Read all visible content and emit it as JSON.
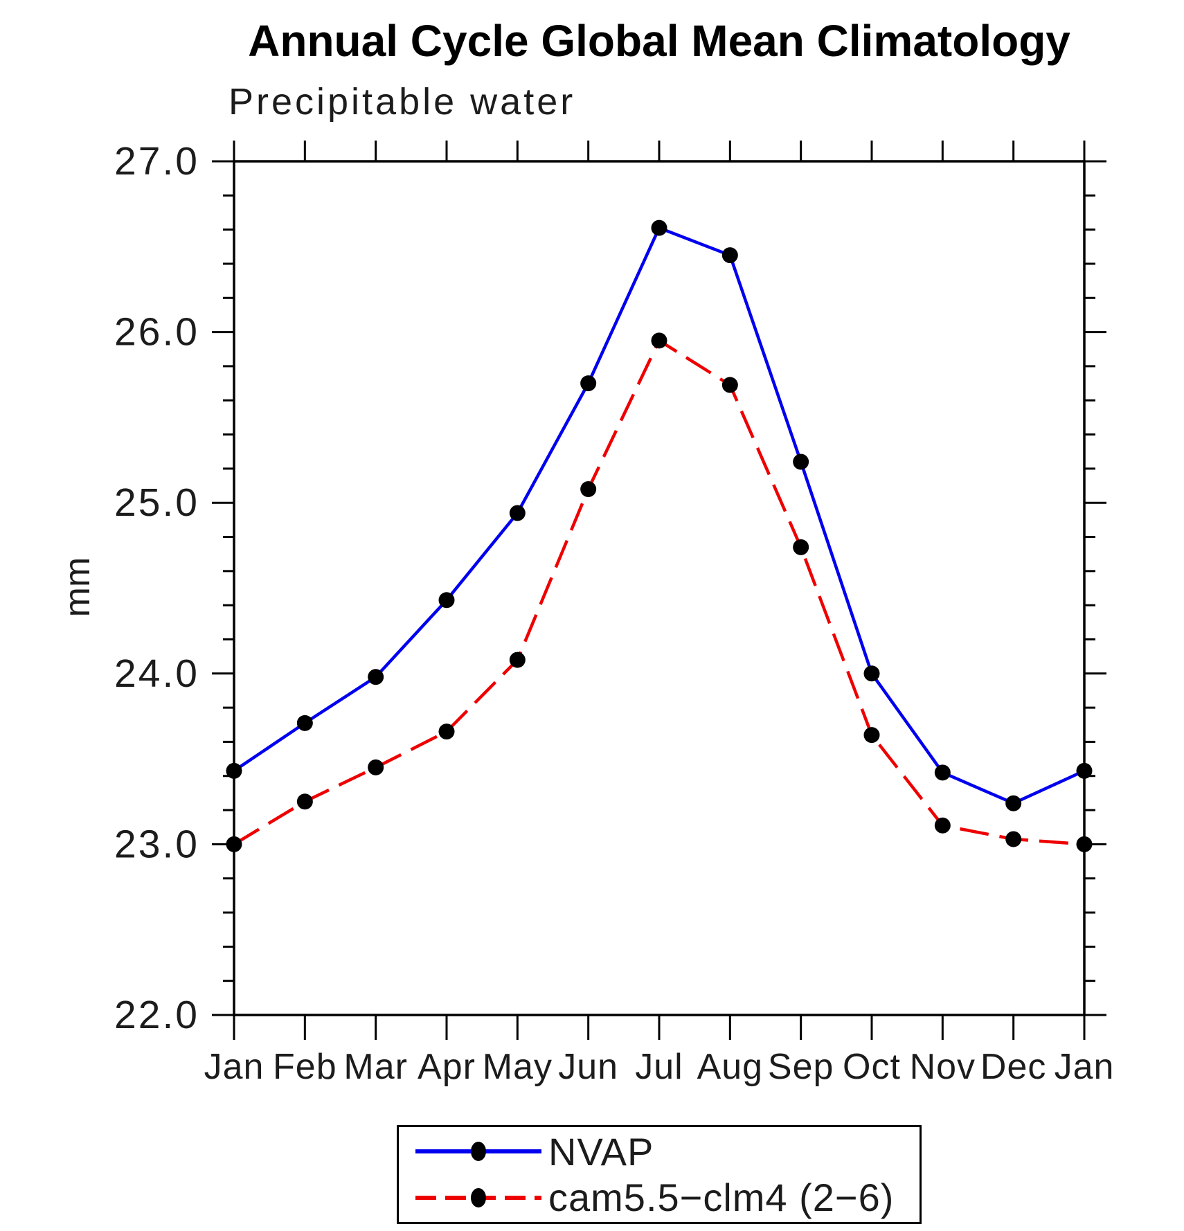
{
  "page": {
    "background": "#ffffff",
    "text_color": "#000000",
    "axis_color": "#000000"
  },
  "chart_data": {
    "type": "line",
    "title": "Annual Cycle Global Mean Climatology",
    "subtitle": "Precipitable water",
    "xlabel": "",
    "ylabel": "mm",
    "categories": [
      "Jan",
      "Feb",
      "Mar",
      "Apr",
      "May",
      "Jun",
      "Jul",
      "Aug",
      "Sep",
      "Oct",
      "Nov",
      "Dec",
      "Jan"
    ],
    "ylim": [
      22.0,
      27.0
    ],
    "ytick_major_step": 1.0,
    "ytick_minor_step": 0.2,
    "ytick_labels": [
      "22.0",
      "23.0",
      "24.0",
      "25.0",
      "26.0",
      "27.0"
    ],
    "grid": false,
    "legend_position": "bottom-center-boxed",
    "marker": "black-dot",
    "marker_color": "#000000",
    "series": [
      {
        "name": "NVAP",
        "color": "#0000ee",
        "style": "solid",
        "values": [
          23.43,
          23.71,
          23.98,
          24.43,
          24.94,
          25.7,
          26.61,
          26.45,
          25.24,
          24.0,
          23.42,
          23.24,
          23.43
        ]
      },
      {
        "name": "cam5.5−clm4 (2−6)",
        "color": "#ee0000",
        "style": "dashed",
        "values": [
          23.0,
          23.25,
          23.45,
          23.66,
          24.08,
          25.08,
          25.95,
          25.69,
          24.74,
          23.64,
          23.11,
          23.03,
          23.0
        ]
      }
    ]
  }
}
